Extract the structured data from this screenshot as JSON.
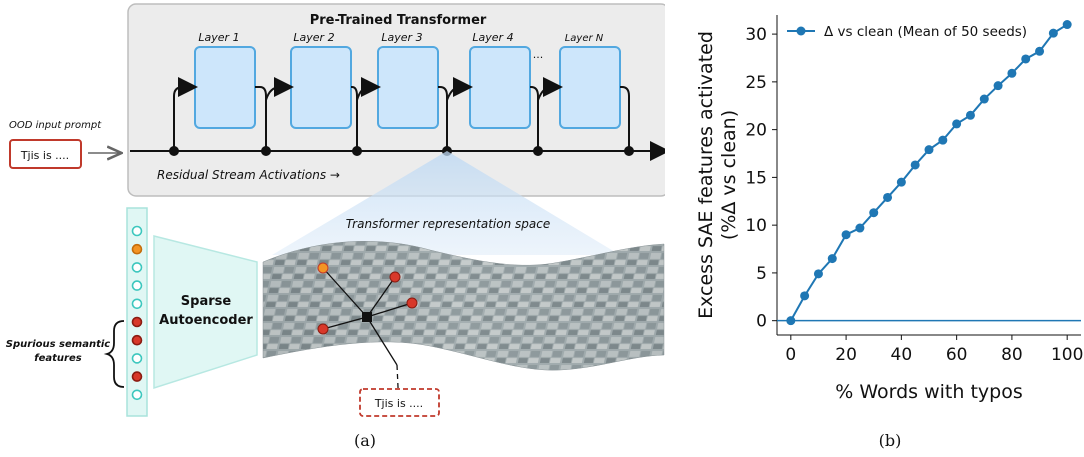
{
  "panel_a": {
    "caption": "(a)",
    "transformer_title": "Pre-Trained Transformer",
    "layers": [
      "Layer 1",
      "Layer 2",
      "Layer 3",
      "Layer 4",
      "Layer N"
    ],
    "ellipsis": "...",
    "residual_label": "Residual Stream Activations →",
    "ood_label": "OOD input prompt",
    "input_prompt": "Tjis is ....",
    "repr_space_label": "Transformer representation space",
    "sae_label_line1": "Sparse",
    "sae_label_line2": "Autoencoder",
    "spurious_line1": "Spurious semantic",
    "spurious_line2": "features",
    "projected_prompt": "Tjis is ....",
    "feature_node_colors": [
      "teal",
      "orange",
      "teal",
      "teal",
      "teal",
      "red",
      "red",
      "teal",
      "red",
      "teal"
    ],
    "colors": {
      "teal": "#3cc7be",
      "orange": "#f39424",
      "red": "#d8382a",
      "layer_fill": "#cde6fb",
      "layer_stroke": "#52a8e0",
      "input_border": "#c0392b"
    }
  },
  "panel_b": {
    "caption": "(b)"
  },
  "chart_data": {
    "type": "line",
    "title": "",
    "xlabel": "% Words with typos",
    "ylabel_line1": "Excess SAE features activated",
    "ylabel_line2": "(%Δ vs clean)",
    "xlim": [
      -5,
      105
    ],
    "ylim": [
      -1.5,
      32
    ],
    "xticks": [
      0,
      20,
      40,
      60,
      80,
      100
    ],
    "yticks": [
      0,
      5,
      10,
      15,
      20,
      25,
      30
    ],
    "legend_position": "top-left",
    "baseline_y": 0,
    "series": [
      {
        "name": "Δ vs clean (Mean of 50 seeds)",
        "color": "#1f77b4",
        "x": [
          0,
          5,
          10,
          15,
          20,
          25,
          30,
          35,
          40,
          45,
          50,
          55,
          60,
          65,
          70,
          75,
          80,
          85,
          90,
          95,
          100
        ],
        "y": [
          0,
          2.6,
          4.9,
          6.5,
          9.0,
          9.7,
          11.3,
          12.9,
          14.5,
          16.3,
          17.9,
          18.9,
          20.6,
          21.5,
          23.2,
          24.6,
          25.9,
          27.4,
          28.2,
          30.1,
          31.0
        ]
      }
    ]
  }
}
